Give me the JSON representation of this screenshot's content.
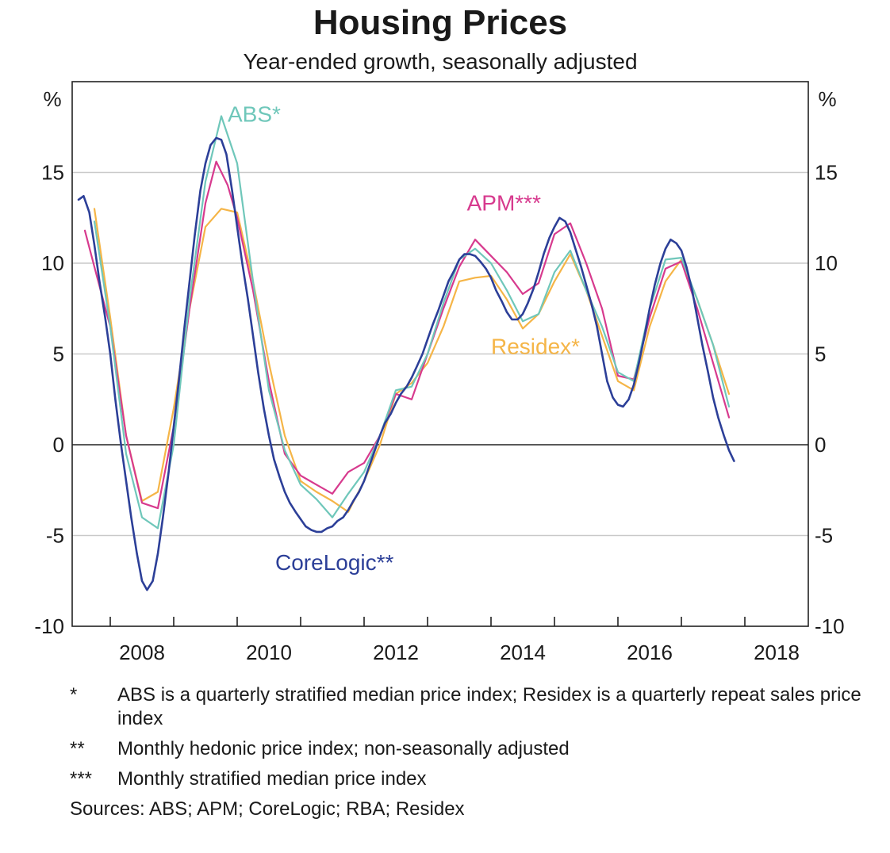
{
  "chart_data": {
    "type": "line",
    "title": "Housing Prices",
    "subtitle": "Year-ended growth, seasonally adjusted",
    "ylabel_left": "%",
    "ylabel_right": "%",
    "xlabel": "",
    "xlim": [
      2007.4,
      2019.0
    ],
    "ylim": [
      -10,
      20
    ],
    "y_ticks": [
      15,
      10,
      5,
      0,
      -5,
      -10
    ],
    "y_tick_labels": [
      "15",
      "10",
      "5",
      "0",
      "-5",
      "-10"
    ],
    "x_tick_labels": [
      {
        "label": "2008",
        "value": 2008
      },
      {
        "label": "2010",
        "value": 2010
      },
      {
        "label": "2012",
        "value": 2012
      },
      {
        "label": "2014",
        "value": 2014
      },
      {
        "label": "2016",
        "value": 2016
      },
      {
        "label": "2018",
        "value": 2018
      }
    ],
    "gridlines": true,
    "series": [
      {
        "name": "Residex",
        "label": "Residex*",
        "color": "#f5b547",
        "points": [
          [
            2007.75,
            13.0
          ],
          [
            2008.0,
            7.0
          ],
          [
            2008.25,
            0.5
          ],
          [
            2008.5,
            -3.1
          ],
          [
            2008.75,
            -2.6
          ],
          [
            2009.0,
            2.0
          ],
          [
            2009.25,
            7.5
          ],
          [
            2009.5,
            12.0
          ],
          [
            2009.75,
            13.0
          ],
          [
            2010.0,
            12.8
          ],
          [
            2010.25,
            9.0
          ],
          [
            2010.5,
            4.5
          ],
          [
            2010.75,
            0.5
          ],
          [
            2011.0,
            -2.0
          ],
          [
            2011.25,
            -2.6
          ],
          [
            2011.5,
            -3.1
          ],
          [
            2011.75,
            -3.7
          ],
          [
            2012.0,
            -2.0
          ],
          [
            2012.25,
            0.0
          ],
          [
            2012.5,
            2.8
          ],
          [
            2012.75,
            3.4
          ],
          [
            2013.0,
            4.5
          ],
          [
            2013.25,
            6.5
          ],
          [
            2013.5,
            9.0
          ],
          [
            2013.75,
            9.2
          ],
          [
            2014.0,
            9.3
          ],
          [
            2014.25,
            8.0
          ],
          [
            2014.5,
            6.4
          ],
          [
            2014.75,
            7.2
          ],
          [
            2015.0,
            9.0
          ],
          [
            2015.25,
            10.5
          ],
          [
            2015.5,
            8.5
          ],
          [
            2015.75,
            6.0
          ],
          [
            2016.0,
            3.5
          ],
          [
            2016.25,
            3.0
          ],
          [
            2016.5,
            6.5
          ],
          [
            2016.75,
            9.0
          ],
          [
            2017.0,
            10.2
          ],
          [
            2017.25,
            8.0
          ],
          [
            2017.5,
            5.5
          ],
          [
            2017.75,
            2.8
          ]
        ]
      },
      {
        "name": "APM",
        "label": "APM***",
        "color": "#d73a8e",
        "points": [
          [
            2007.6,
            11.8
          ],
          [
            2007.75,
            9.8
          ],
          [
            2008.0,
            6.5
          ],
          [
            2008.25,
            0.5
          ],
          [
            2008.5,
            -3.2
          ],
          [
            2008.75,
            -3.5
          ],
          [
            2009.0,
            1.0
          ],
          [
            2009.25,
            7.5
          ],
          [
            2009.5,
            13.3
          ],
          [
            2009.67,
            15.6
          ],
          [
            2009.85,
            14.3
          ],
          [
            2010.0,
            12.5
          ],
          [
            2010.25,
            8.5
          ],
          [
            2010.5,
            3.5
          ],
          [
            2010.75,
            -0.5
          ],
          [
            2011.0,
            -1.7
          ],
          [
            2011.25,
            -2.2
          ],
          [
            2011.5,
            -2.7
          ],
          [
            2011.75,
            -1.5
          ],
          [
            2012.0,
            -1.0
          ],
          [
            2012.25,
            0.5
          ],
          [
            2012.5,
            2.8
          ],
          [
            2012.75,
            2.5
          ],
          [
            2013.0,
            5.0
          ],
          [
            2013.25,
            7.5
          ],
          [
            2013.5,
            9.8
          ],
          [
            2013.75,
            11.3
          ],
          [
            2014.0,
            10.4
          ],
          [
            2014.25,
            9.5
          ],
          [
            2014.5,
            8.3
          ],
          [
            2014.75,
            8.9
          ],
          [
            2015.0,
            11.6
          ],
          [
            2015.25,
            12.2
          ],
          [
            2015.5,
            10.0
          ],
          [
            2015.75,
            7.5
          ],
          [
            2016.0,
            3.8
          ],
          [
            2016.25,
            3.6
          ],
          [
            2016.5,
            7.0
          ],
          [
            2016.75,
            9.7
          ],
          [
            2017.0,
            10.1
          ],
          [
            2017.25,
            7.5
          ],
          [
            2017.5,
            4.5
          ],
          [
            2017.75,
            1.5
          ]
        ]
      },
      {
        "name": "ABS",
        "label": "ABS*",
        "color": "#6fc7ba",
        "points": [
          [
            2007.75,
            12.3
          ],
          [
            2008.0,
            6.5
          ],
          [
            2008.25,
            -0.5
          ],
          [
            2008.5,
            -4.0
          ],
          [
            2008.75,
            -4.6
          ],
          [
            2009.0,
            0.0
          ],
          [
            2009.25,
            8.0
          ],
          [
            2009.5,
            14.5
          ],
          [
            2009.75,
            18.1
          ],
          [
            2010.0,
            15.5
          ],
          [
            2010.25,
            9.0
          ],
          [
            2010.5,
            3.0
          ],
          [
            2010.75,
            -0.3
          ],
          [
            2011.0,
            -2.2
          ],
          [
            2011.25,
            -3.0
          ],
          [
            2011.5,
            -4.0
          ],
          [
            2011.75,
            -2.7
          ],
          [
            2012.0,
            -1.5
          ],
          [
            2012.25,
            0.5
          ],
          [
            2012.5,
            3.0
          ],
          [
            2012.75,
            3.2
          ],
          [
            2013.0,
            5.0
          ],
          [
            2013.25,
            7.8
          ],
          [
            2013.5,
            10.2
          ],
          [
            2013.75,
            10.8
          ],
          [
            2014.0,
            10.0
          ],
          [
            2014.25,
            8.5
          ],
          [
            2014.5,
            6.8
          ],
          [
            2014.75,
            7.2
          ],
          [
            2015.0,
            9.5
          ],
          [
            2015.25,
            10.7
          ],
          [
            2015.5,
            8.5
          ],
          [
            2015.75,
            6.5
          ],
          [
            2016.0,
            4.0
          ],
          [
            2016.25,
            3.5
          ],
          [
            2016.5,
            7.5
          ],
          [
            2016.75,
            10.2
          ],
          [
            2017.0,
            10.3
          ],
          [
            2017.25,
            8.0
          ],
          [
            2017.5,
            5.5
          ],
          [
            2017.75,
            2.1
          ]
        ]
      },
      {
        "name": "CoreLogic",
        "label": "CoreLogic**",
        "color": "#2c3f98",
        "points": [
          [
            2007.5,
            13.5
          ],
          [
            2007.58,
            13.7
          ],
          [
            2007.67,
            12.8
          ],
          [
            2007.75,
            11.0
          ],
          [
            2007.83,
            9.0
          ],
          [
            2007.92,
            7.0
          ],
          [
            2008.0,
            5.0
          ],
          [
            2008.08,
            2.5
          ],
          [
            2008.17,
            0.0
          ],
          [
            2008.25,
            -2.0
          ],
          [
            2008.33,
            -4.0
          ],
          [
            2008.42,
            -6.0
          ],
          [
            2008.5,
            -7.5
          ],
          [
            2008.58,
            -8.0
          ],
          [
            2008.67,
            -7.5
          ],
          [
            2008.75,
            -6.0
          ],
          [
            2008.83,
            -4.0
          ],
          [
            2008.92,
            -1.5
          ],
          [
            2009.0,
            1.0
          ],
          [
            2009.08,
            3.5
          ],
          [
            2009.17,
            6.5
          ],
          [
            2009.25,
            9.0
          ],
          [
            2009.33,
            11.5
          ],
          [
            2009.42,
            14.0
          ],
          [
            2009.5,
            15.5
          ],
          [
            2009.58,
            16.5
          ],
          [
            2009.67,
            16.9
          ],
          [
            2009.75,
            16.8
          ],
          [
            2009.83,
            16.0
          ],
          [
            2009.92,
            14.0
          ],
          [
            2010.0,
            12.0
          ],
          [
            2010.08,
            10.0
          ],
          [
            2010.17,
            8.0
          ],
          [
            2010.25,
            6.0
          ],
          [
            2010.33,
            4.0
          ],
          [
            2010.42,
            2.0
          ],
          [
            2010.5,
            0.5
          ],
          [
            2010.58,
            -0.8
          ],
          [
            2010.67,
            -1.8
          ],
          [
            2010.75,
            -2.6
          ],
          [
            2010.83,
            -3.2
          ],
          [
            2010.92,
            -3.7
          ],
          [
            2011.0,
            -4.1
          ],
          [
            2011.08,
            -4.5
          ],
          [
            2011.17,
            -4.7
          ],
          [
            2011.25,
            -4.8
          ],
          [
            2011.33,
            -4.8
          ],
          [
            2011.42,
            -4.6
          ],
          [
            2011.5,
            -4.5
          ],
          [
            2011.58,
            -4.2
          ],
          [
            2011.67,
            -4.0
          ],
          [
            2011.75,
            -3.6
          ],
          [
            2011.83,
            -3.1
          ],
          [
            2011.92,
            -2.6
          ],
          [
            2012.0,
            -2.0
          ],
          [
            2012.08,
            -1.2
          ],
          [
            2012.17,
            -0.3
          ],
          [
            2012.25,
            0.5
          ],
          [
            2012.33,
            1.2
          ],
          [
            2012.42,
            1.7
          ],
          [
            2012.5,
            2.3
          ],
          [
            2012.58,
            2.8
          ],
          [
            2012.67,
            3.2
          ],
          [
            2012.75,
            3.7
          ],
          [
            2012.83,
            4.3
          ],
          [
            2012.92,
            5.0
          ],
          [
            2013.0,
            5.8
          ],
          [
            2013.08,
            6.6
          ],
          [
            2013.17,
            7.4
          ],
          [
            2013.25,
            8.2
          ],
          [
            2013.33,
            9.0
          ],
          [
            2013.42,
            9.6
          ],
          [
            2013.5,
            10.2
          ],
          [
            2013.58,
            10.5
          ],
          [
            2013.67,
            10.5
          ],
          [
            2013.75,
            10.4
          ],
          [
            2013.83,
            10.1
          ],
          [
            2013.92,
            9.7
          ],
          [
            2014.0,
            9.2
          ],
          [
            2014.08,
            8.5
          ],
          [
            2014.17,
            7.9
          ],
          [
            2014.25,
            7.3
          ],
          [
            2014.33,
            6.9
          ],
          [
            2014.42,
            6.9
          ],
          [
            2014.5,
            7.2
          ],
          [
            2014.58,
            7.8
          ],
          [
            2014.67,
            8.6
          ],
          [
            2014.75,
            9.5
          ],
          [
            2014.83,
            10.5
          ],
          [
            2014.92,
            11.4
          ],
          [
            2015.0,
            12.0
          ],
          [
            2015.08,
            12.5
          ],
          [
            2015.17,
            12.3
          ],
          [
            2015.25,
            11.7
          ],
          [
            2015.33,
            10.8
          ],
          [
            2015.42,
            9.8
          ],
          [
            2015.5,
            8.8
          ],
          [
            2015.58,
            7.8
          ],
          [
            2015.67,
            6.5
          ],
          [
            2015.75,
            5.0
          ],
          [
            2015.83,
            3.5
          ],
          [
            2015.92,
            2.6
          ],
          [
            2016.0,
            2.2
          ],
          [
            2016.08,
            2.1
          ],
          [
            2016.17,
            2.5
          ],
          [
            2016.25,
            3.3
          ],
          [
            2016.33,
            4.5
          ],
          [
            2016.42,
            6.0
          ],
          [
            2016.5,
            7.5
          ],
          [
            2016.58,
            8.8
          ],
          [
            2016.67,
            10.0
          ],
          [
            2016.75,
            10.8
          ],
          [
            2016.83,
            11.3
          ],
          [
            2016.92,
            11.1
          ],
          [
            2017.0,
            10.7
          ],
          [
            2017.08,
            9.8
          ],
          [
            2017.17,
            8.5
          ],
          [
            2017.25,
            7.0
          ],
          [
            2017.33,
            5.5
          ],
          [
            2017.42,
            4.0
          ],
          [
            2017.5,
            2.6
          ],
          [
            2017.58,
            1.5
          ],
          [
            2017.67,
            0.5
          ],
          [
            2017.75,
            -0.3
          ],
          [
            2017.83,
            -0.9
          ]
        ]
      }
    ],
    "annotations": [
      {
        "text": "ABS*",
        "series": "ABS",
        "x": 2009.85,
        "y": 17.8
      },
      {
        "text": "APM***",
        "series": "APM",
        "x": 2013.62,
        "y": 12.9
      },
      {
        "text": "Residex*",
        "series": "Residex",
        "x": 2014.0,
        "y": 5.0
      },
      {
        "text": "CoreLogic**",
        "series": "CoreLogic",
        "x": 2010.6,
        "y": -6.9
      }
    ]
  },
  "footnotes": [
    {
      "mark": "*",
      "text": "ABS is a quarterly stratified median price index; Residex is a quarterly repeat sales price index"
    },
    {
      "mark": "**",
      "text": "Monthly hedonic price index; non-seasonally adjusted"
    },
    {
      "mark": "***",
      "text": "Monthly stratified median price index"
    }
  ],
  "sources": "Sources: ABS; APM; CoreLogic; RBA; Residex"
}
